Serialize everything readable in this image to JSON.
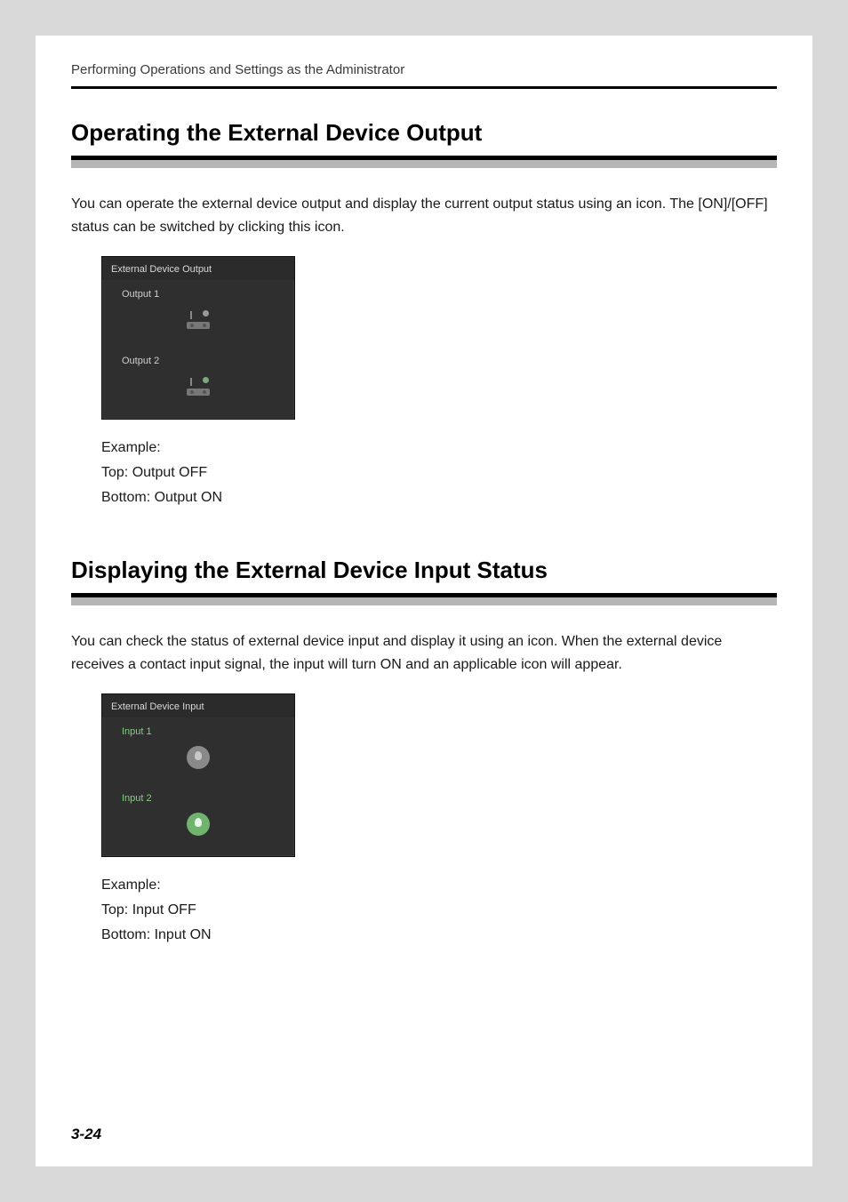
{
  "runningHead": "Performing Operations and Settings as the Administrator",
  "pageNumber": "3-24",
  "sections": [
    {
      "heading": "Operating the External Device Output",
      "paragraph": "You can operate the external device output and display the current output status using an icon. The [ON]/[OFF] status can be switched by clicking this icon.",
      "panel": {
        "title": "External Device Output",
        "item1": "Output 1",
        "item2": "Output 2"
      },
      "captionLines": [
        "Example:",
        "Top: Output OFF",
        "Bottom: Output ON"
      ]
    },
    {
      "heading": "Displaying the External Device Input Status",
      "paragraph": "You can check the status of external device input and display it using an icon. When the external device receives a contact input signal, the input will turn ON and an applicable icon will appear.",
      "panel": {
        "title": "External Device Input",
        "item1": "Input 1",
        "item2": "Input 2"
      },
      "captionLines": [
        "Example:",
        "Top: Input OFF",
        "Bottom: Input ON"
      ]
    }
  ]
}
